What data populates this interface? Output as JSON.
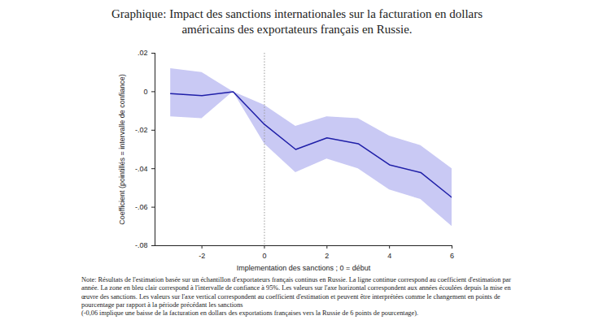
{
  "chart_data": {
    "type": "line",
    "title": "Graphique: Impact des sanctions internationales sur la facturation en dollars américains des exportateurs français en Russie.",
    "x_label": "Implementation des sanctions ; 0 = début",
    "y_label": "Coefficient (pointillés = intervalle de confiance)",
    "note": [
      "Note: Résultats de l'estimation basée sur un échantillon d'exportateurs français continus en Russie. La ligne continue correspond au coefficient d'estimation par année. La zone en bleu clair correspond à l'intervalle de confiance à 95%. Les valeurs sur l'axe horizontal correspondent aux années écoulées depuis la mise en œuvre des sanctions. Les valeurs sur l'axe vertical correspondent au coefficient d'estimation et peuvent être interprétées comme le changement en points de pourcentage par rapport à la période précédant les sanctions",
      "(-0,06 implique une baisse de la facturation en dollars des exportations françaises vers la Russie de 6 points de pourcentage)."
    ],
    "x": [
      -3,
      -2,
      -1,
      0,
      1,
      2,
      3,
      4,
      5,
      6
    ],
    "series": [
      {
        "type": "area",
        "color": "#c9c9f4",
        "lower": [
          -0.013,
          -0.014,
          0,
          -0.027,
          -0.042,
          -0.035,
          -0.04,
          -0.051,
          -0.056,
          -0.07
        ],
        "upper": [
          0.012,
          0.01,
          0,
          -0.007,
          -0.018,
          -0.013,
          -0.014,
          -0.023,
          -0.028,
          -0.04
        ]
      },
      {
        "type": "line",
        "color": "#1f1fa8",
        "values": [
          -0.001,
          -0.002,
          0,
          -0.017,
          -0.03,
          -0.024,
          -0.027,
          -0.038,
          -0.042,
          -0.055
        ]
      }
    ],
    "vline": 0,
    "xlim": [
      -3.5,
      6
    ],
    "xticks": [
      -2,
      0,
      2,
      4,
      6
    ],
    "ylim": [
      -0.08,
      0.02
    ],
    "yticks": [
      {
        "value": 0.02,
        "label": ".02"
      },
      {
        "value": 0,
        "label": "0"
      },
      {
        "value": -0.02,
        "label": "-.02"
      },
      {
        "value": -0.04,
        "label": "-.04"
      },
      {
        "value": -0.06,
        "label": "-.06"
      },
      {
        "value": -0.08,
        "label": "-.08"
      }
    ],
    "grid": false
  }
}
